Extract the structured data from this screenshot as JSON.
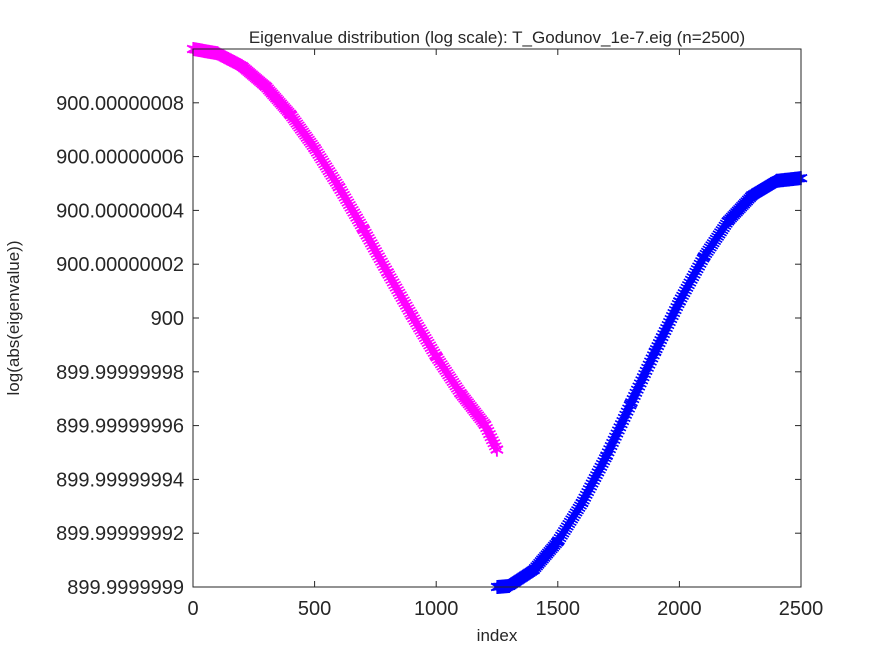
{
  "chart_data": {
    "type": "scatter",
    "title": "Eigenvalue distribution (log scale): T_Godunov_1e-7.eig (n=2500)",
    "xlabel": "index",
    "ylabel": "log(abs(eigenvalue))",
    "xlim": [
      0,
      2500
    ],
    "ylim": [
      899.9999999,
      900.0000001
    ],
    "x_ticks": [
      0,
      500,
      1000,
      1500,
      2000,
      2500
    ],
    "x_tick_labels": [
      "0",
      "500",
      "1000",
      "1500",
      "2000",
      "2500"
    ],
    "y_ticks": [
      899.9999999,
      899.99999992,
      899.99999994,
      899.99999996,
      899.99999998,
      900,
      900.00000002,
      900.00000004,
      900.00000006,
      900.00000008
    ],
    "y_tick_labels": [
      "899.9999999",
      "899.99999992",
      "899.99999994",
      "899.99999996",
      "899.99999998",
      "900",
      "900.00000002",
      "900.00000004",
      "900.00000006",
      "900.00000008"
    ],
    "marker": "*",
    "grid": false,
    "box": true,
    "series": [
      {
        "color": "#ff00ff",
        "x": [
          1,
          100,
          200,
          300,
          400,
          500,
          600,
          700,
          800,
          900,
          1000,
          1100,
          1200,
          1250
        ],
        "y": [
          900.0000001,
          900.0000000984,
          900.0000000937,
          900.000000086,
          900.0000000757,
          900.0000000631,
          900.0000000487,
          900.0000000331,
          900.0000000169,
          900.0000000009,
          899.9999999857,
          899.999999972,
          899.9999999604,
          899.999999951
        ]
      },
      {
        "color": "#0000ff",
        "x": [
          1251,
          1300,
          1400,
          1500,
          1600,
          1700,
          1800,
          1900,
          2000,
          2100,
          2200,
          2300,
          2400,
          2500
        ],
        "y": [
          899.9999999,
          899.9999999004,
          899.9999999063,
          899.9999999169,
          899.9999999313,
          899.9999999487,
          899.9999999681,
          899.9999999875,
          900.0000000061,
          900.0000000226,
          900.000000036,
          900.0000000456,
          900.000000051,
          900.000000052
        ]
      }
    ]
  }
}
